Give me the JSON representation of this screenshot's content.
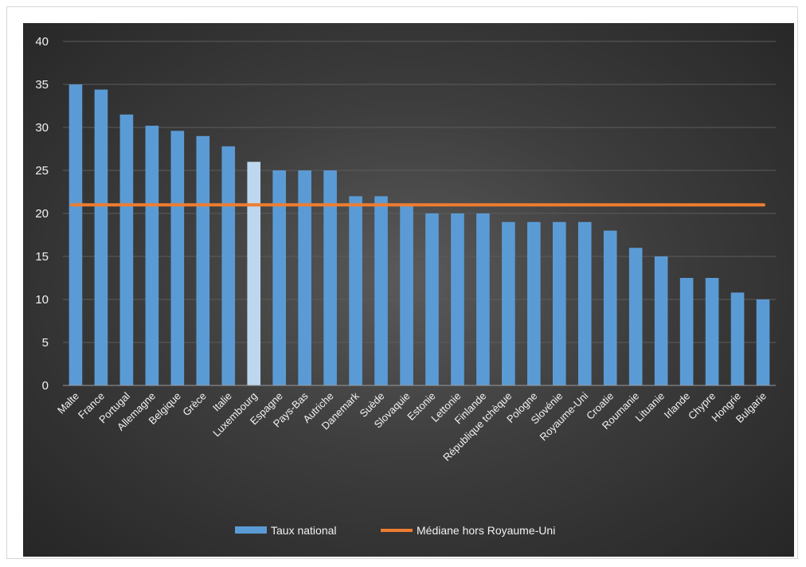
{
  "chart_data": {
    "type": "bar",
    "title": "",
    "xlabel": "",
    "ylabel": "",
    "ylim": [
      0,
      40
    ],
    "yticks": [
      0,
      5,
      10,
      15,
      20,
      25,
      30,
      35,
      40
    ],
    "grid": true,
    "legend_position": "bottom",
    "categories": [
      "Malte",
      "France",
      "Portugal",
      "Allemagne",
      "Belgique",
      "Grèce",
      "Italie",
      "Luxembourg",
      "Espagne",
      "Pays-Bas",
      "Autriche",
      "Danemark",
      "Suède",
      "Slovaquie",
      "Estonie",
      "Lettonie",
      "Finlande",
      "République tchèque",
      "Pologne",
      "Slovénie",
      "Royaume-Uni",
      "Croatie",
      "Roumanie",
      "Lituanie",
      "Irlande",
      "Chypre",
      "Hongrie",
      "Bulgarie"
    ],
    "series": [
      {
        "name": "Taux national",
        "kind": "bar",
        "color": "#5b9bd5",
        "highlight_color": "#bdd7ee",
        "highlight_category": "Luxembourg",
        "values": [
          35,
          34.4,
          31.5,
          30.2,
          29.6,
          29,
          27.8,
          26,
          25,
          25,
          25,
          22,
          22,
          21,
          20,
          20,
          20,
          19,
          19,
          19,
          19,
          18,
          16,
          15,
          12.5,
          12.5,
          10.8,
          10
        ]
      },
      {
        "name": "Médiane hors Royaume-Uni",
        "kind": "line",
        "color": "#ed7d31",
        "value": 21
      }
    ]
  }
}
